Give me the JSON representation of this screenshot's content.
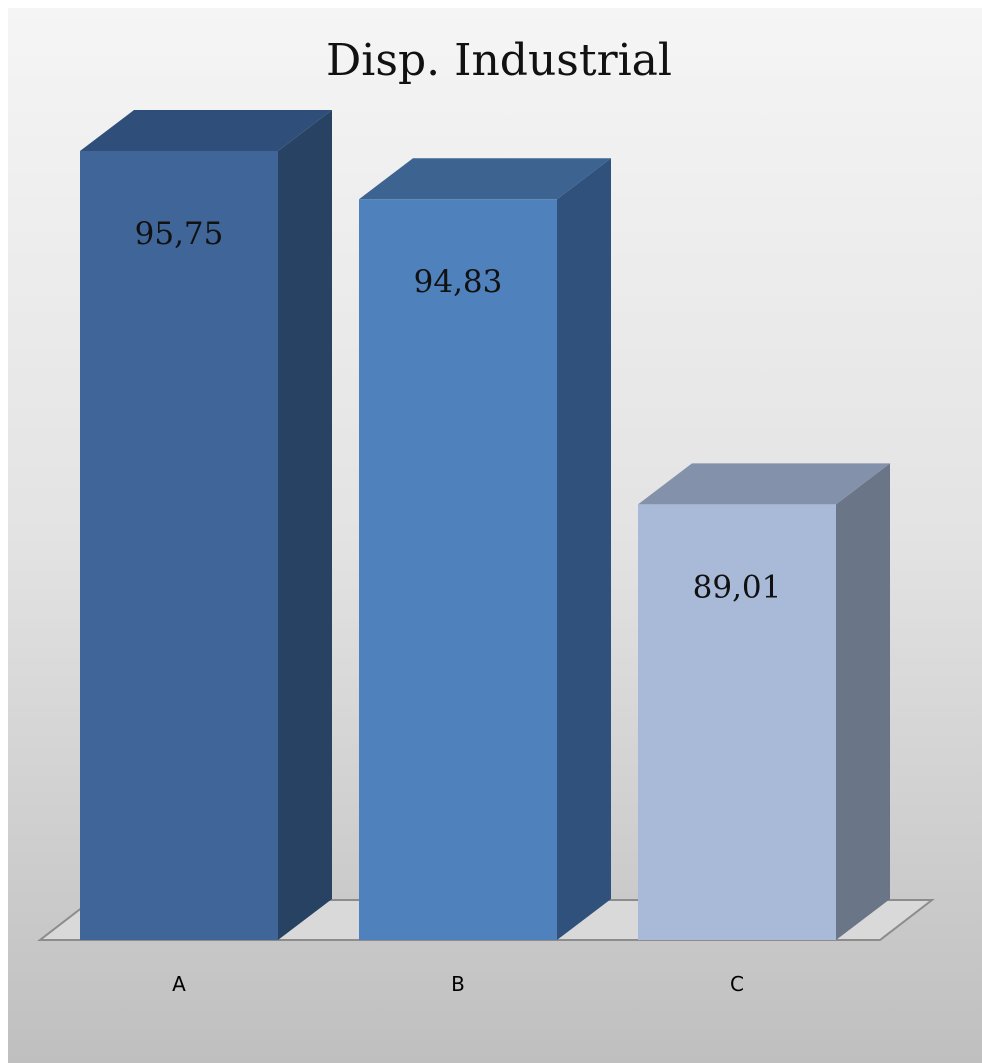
{
  "chart_data": {
    "type": "bar",
    "style": "3d-column",
    "title": "Disp. Industrial",
    "categories": [
      "A",
      "B",
      "C"
    ],
    "values": [
      95.75,
      94.83,
      89.01
    ],
    "value_labels": [
      "95,75",
      "94,83",
      "89,01"
    ],
    "xlabel": "",
    "ylabel": "",
    "ylim": [
      80.7,
      97.2
    ],
    "grid": false,
    "legend": "none",
    "colors": [
      {
        "front": "#3f6599",
        "top": "#2f4f7a",
        "side": "#284263"
      },
      {
        "front": "#4f81bd",
        "top": "#3d6391",
        "side": "#30517b"
      },
      {
        "front": "#a9b9d8",
        "top": "#8391ab",
        "side": "#6b7588"
      }
    ]
  }
}
